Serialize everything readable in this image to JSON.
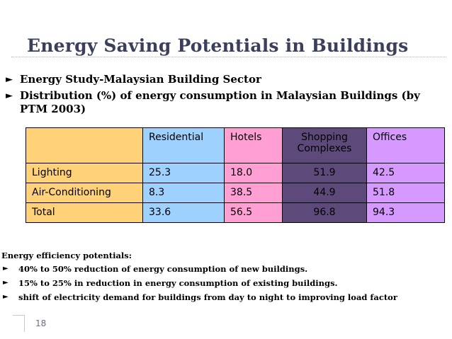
{
  "slide": {
    "title": "Energy Saving Potentials in Buildings",
    "bullet_marker": "►",
    "bullets": [
      "Energy Study-Malaysian Building Sector",
      "Distribution (%) of energy consumption in Malaysian Buildings (by PTM 2003)"
    ],
    "page_number": "18"
  },
  "table": {
    "headers": [
      "",
      "Residential",
      "Hotels",
      "Shopping Complexes",
      "Offices"
    ],
    "rows": [
      {
        "label": "Lighting",
        "values": [
          "25.3",
          "18.0",
          "51.9",
          "42.5"
        ]
      },
      {
        "label": "Air-Conditioning",
        "values": [
          "8.3",
          "38.5",
          "44.9",
          "51.8"
        ]
      },
      {
        "label": "Total",
        "values": [
          "33.6",
          "56.5",
          "96.8",
          "94.3"
        ]
      }
    ],
    "colors": {
      "label_column": "#ffd27a",
      "residential": "#9fd1ff",
      "hotels": "#ff9fd4",
      "shopping_complexes": "#5e4a7a",
      "offices": "#d699ff"
    }
  },
  "potentials": {
    "heading": "Energy efficiency potentials:",
    "items": [
      "40% to 50% reduction of energy consumption of new buildings.",
      "15% to 25% in reduction in energy consumption of existing buildings.",
      "shift of electricity demand for buildings from day to night to  improving load factor"
    ]
  }
}
